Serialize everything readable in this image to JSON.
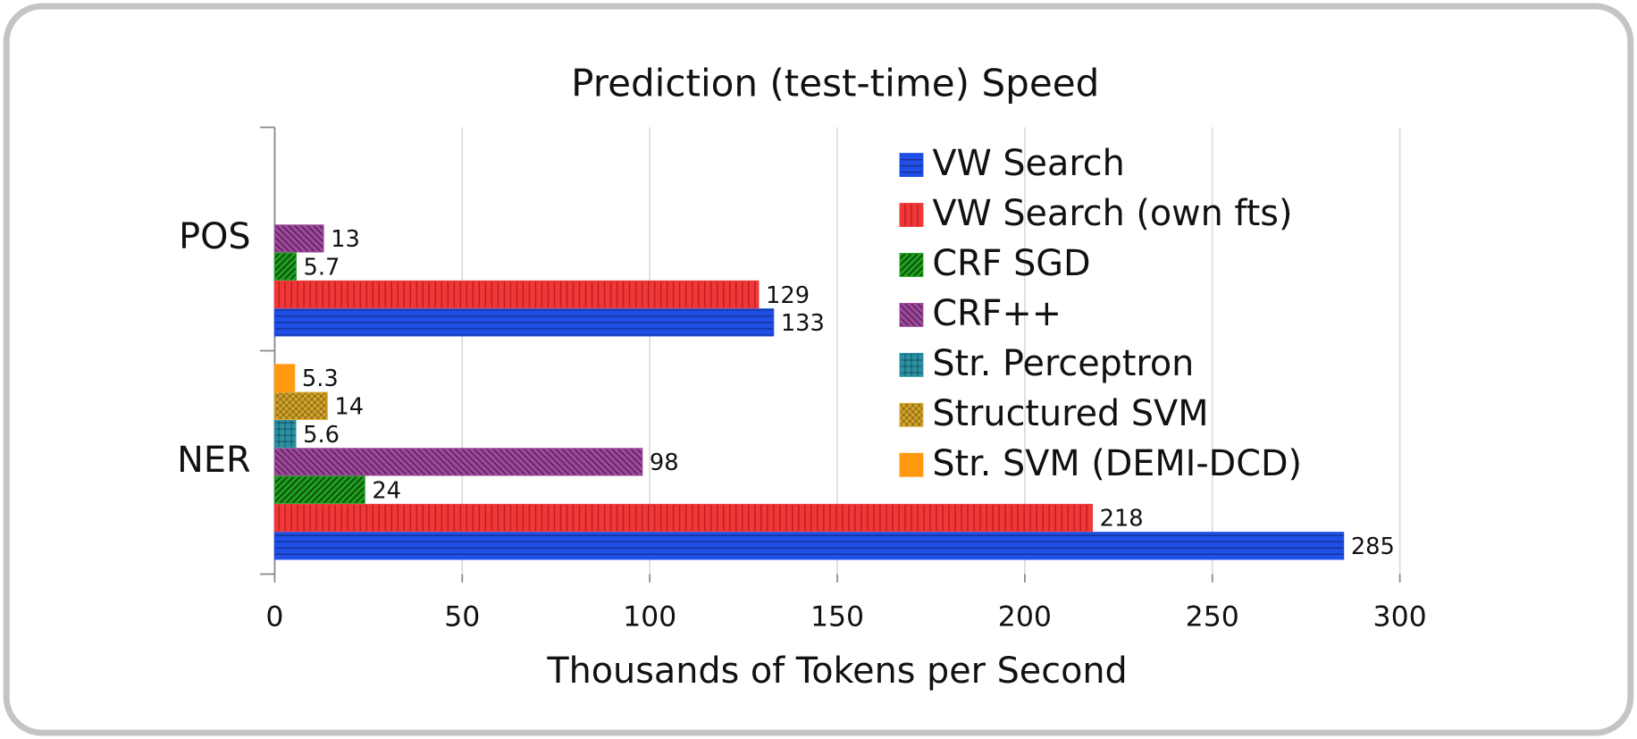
{
  "chart_data": {
    "type": "hbar",
    "title": "Prediction (test-time) Speed",
    "x_label": "Thousands of Tokens per Second",
    "categories": [
      "POS",
      "NER"
    ],
    "series": [
      {
        "name": "VW Search",
        "color": "#1f4fe6",
        "values": [
          133,
          285
        ]
      },
      {
        "name": "VW Search (own fts)",
        "color": "#f03838",
        "values": [
          129,
          218
        ]
      },
      {
        "name": "CRF SGD",
        "color": "#1ea01e",
        "values": [
          5.7,
          24
        ]
      },
      {
        "name": "CRF++",
        "color": "#9a4c9a",
        "values": [
          13,
          98
        ]
      },
      {
        "name": "Str. Perceptron",
        "color": "#2a90a4",
        "values": [
          null,
          5.6
        ]
      },
      {
        "name": "Structured SVM",
        "color": "#d8a72a",
        "values": [
          null,
          14
        ]
      },
      {
        "name": "Str. SVM (DEMI-DCD)",
        "color": "#ff9a10",
        "values": [
          null,
          5.3
        ]
      }
    ],
    "xlim": [
      0,
      300
    ],
    "xticks": [
      0,
      50,
      100,
      150,
      200,
      250,
      300
    ],
    "grid": true,
    "legend": "upper right"
  }
}
